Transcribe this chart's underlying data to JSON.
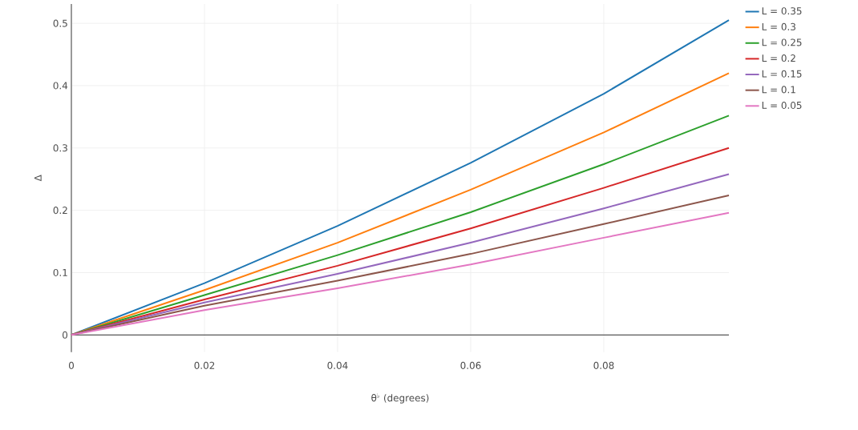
{
  "chart_data": {
    "type": "line",
    "xlabel": "θ$^{♭}$ (degrees)",
    "ylabel": "Δ",
    "x": [
      0,
      0.02,
      0.04,
      0.06,
      0.08,
      0.0988
    ],
    "series": [
      {
        "name": "L = 0.35",
        "color": "#1f77b4",
        "values": [
          0,
          0.083,
          0.175,
          0.276,
          0.387,
          0.505
        ]
      },
      {
        "name": "L = 0.3",
        "color": "#ff7f0e",
        "values": [
          0,
          0.072,
          0.148,
          0.233,
          0.325,
          0.42
        ]
      },
      {
        "name": "L = 0.25",
        "color": "#2ca02c",
        "values": [
          0,
          0.064,
          0.128,
          0.197,
          0.274,
          0.352
        ]
      },
      {
        "name": "L = 0.2",
        "color": "#d62728",
        "values": [
          0,
          0.057,
          0.111,
          0.171,
          0.236,
          0.3
        ]
      },
      {
        "name": "L = 0.15",
        "color": "#9467bd",
        "values": [
          0,
          0.052,
          0.098,
          0.148,
          0.203,
          0.258
        ]
      },
      {
        "name": "L = 0.1",
        "color": "#8c564b",
        "values": [
          0,
          0.047,
          0.087,
          0.13,
          0.178,
          0.224
        ]
      },
      {
        "name": "L = 0.05",
        "color": "#e377c2",
        "values": [
          0,
          0.04,
          0.075,
          0.113,
          0.156,
          0.196
        ]
      }
    ],
    "xlim": [
      0,
      0.0988
    ],
    "ylim": [
      -0.0275,
      0.531
    ],
    "xticks": [
      0,
      0.02,
      0.04,
      0.06,
      0.08
    ],
    "yticks": [
      0,
      0.1,
      0.2,
      0.3,
      0.4,
      0.5
    ],
    "grid": true,
    "legend": "top right",
    "line_style": "solid",
    "marker": "none"
  }
}
